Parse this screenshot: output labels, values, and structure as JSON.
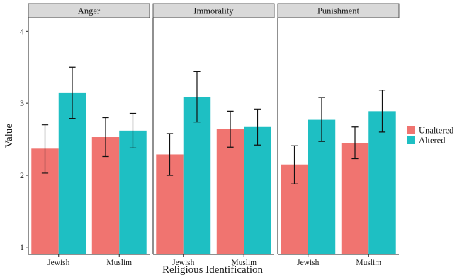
{
  "chart_data": {
    "type": "bar",
    "facets": [
      "Anger",
      "Immorality",
      "Punishment"
    ],
    "categories": [
      "Jewish",
      "Muslim"
    ],
    "series": [
      {
        "name": "Unaltered",
        "color": "#F07470",
        "values": [
          [
            2.37,
            2.53
          ],
          [
            2.29,
            2.64
          ],
          [
            2.15,
            2.45
          ]
        ],
        "error_low": [
          [
            2.03,
            2.26
          ],
          [
            2.0,
            2.39
          ],
          [
            1.88,
            2.23
          ]
        ],
        "error_high": [
          [
            2.7,
            2.8
          ],
          [
            2.58,
            2.89
          ],
          [
            2.41,
            2.67
          ]
        ]
      },
      {
        "name": "Altered",
        "color": "#1EBFC3",
        "values": [
          [
            3.15,
            2.62
          ],
          [
            3.09,
            2.67
          ],
          [
            2.77,
            2.89
          ]
        ],
        "error_low": [
          [
            2.79,
            2.38
          ],
          [
            2.74,
            2.42
          ],
          [
            2.47,
            2.6
          ]
        ],
        "error_high": [
          [
            3.5,
            2.86
          ],
          [
            3.44,
            2.92
          ],
          [
            3.08,
            3.18
          ]
        ]
      }
    ],
    "xlabel": "Religious Identification",
    "ylabel": "Value",
    "ylim": [
      0.9,
      4.18
    ],
    "yticks": [
      1,
      2,
      3,
      4
    ],
    "legend_position": "right",
    "grid": false
  }
}
